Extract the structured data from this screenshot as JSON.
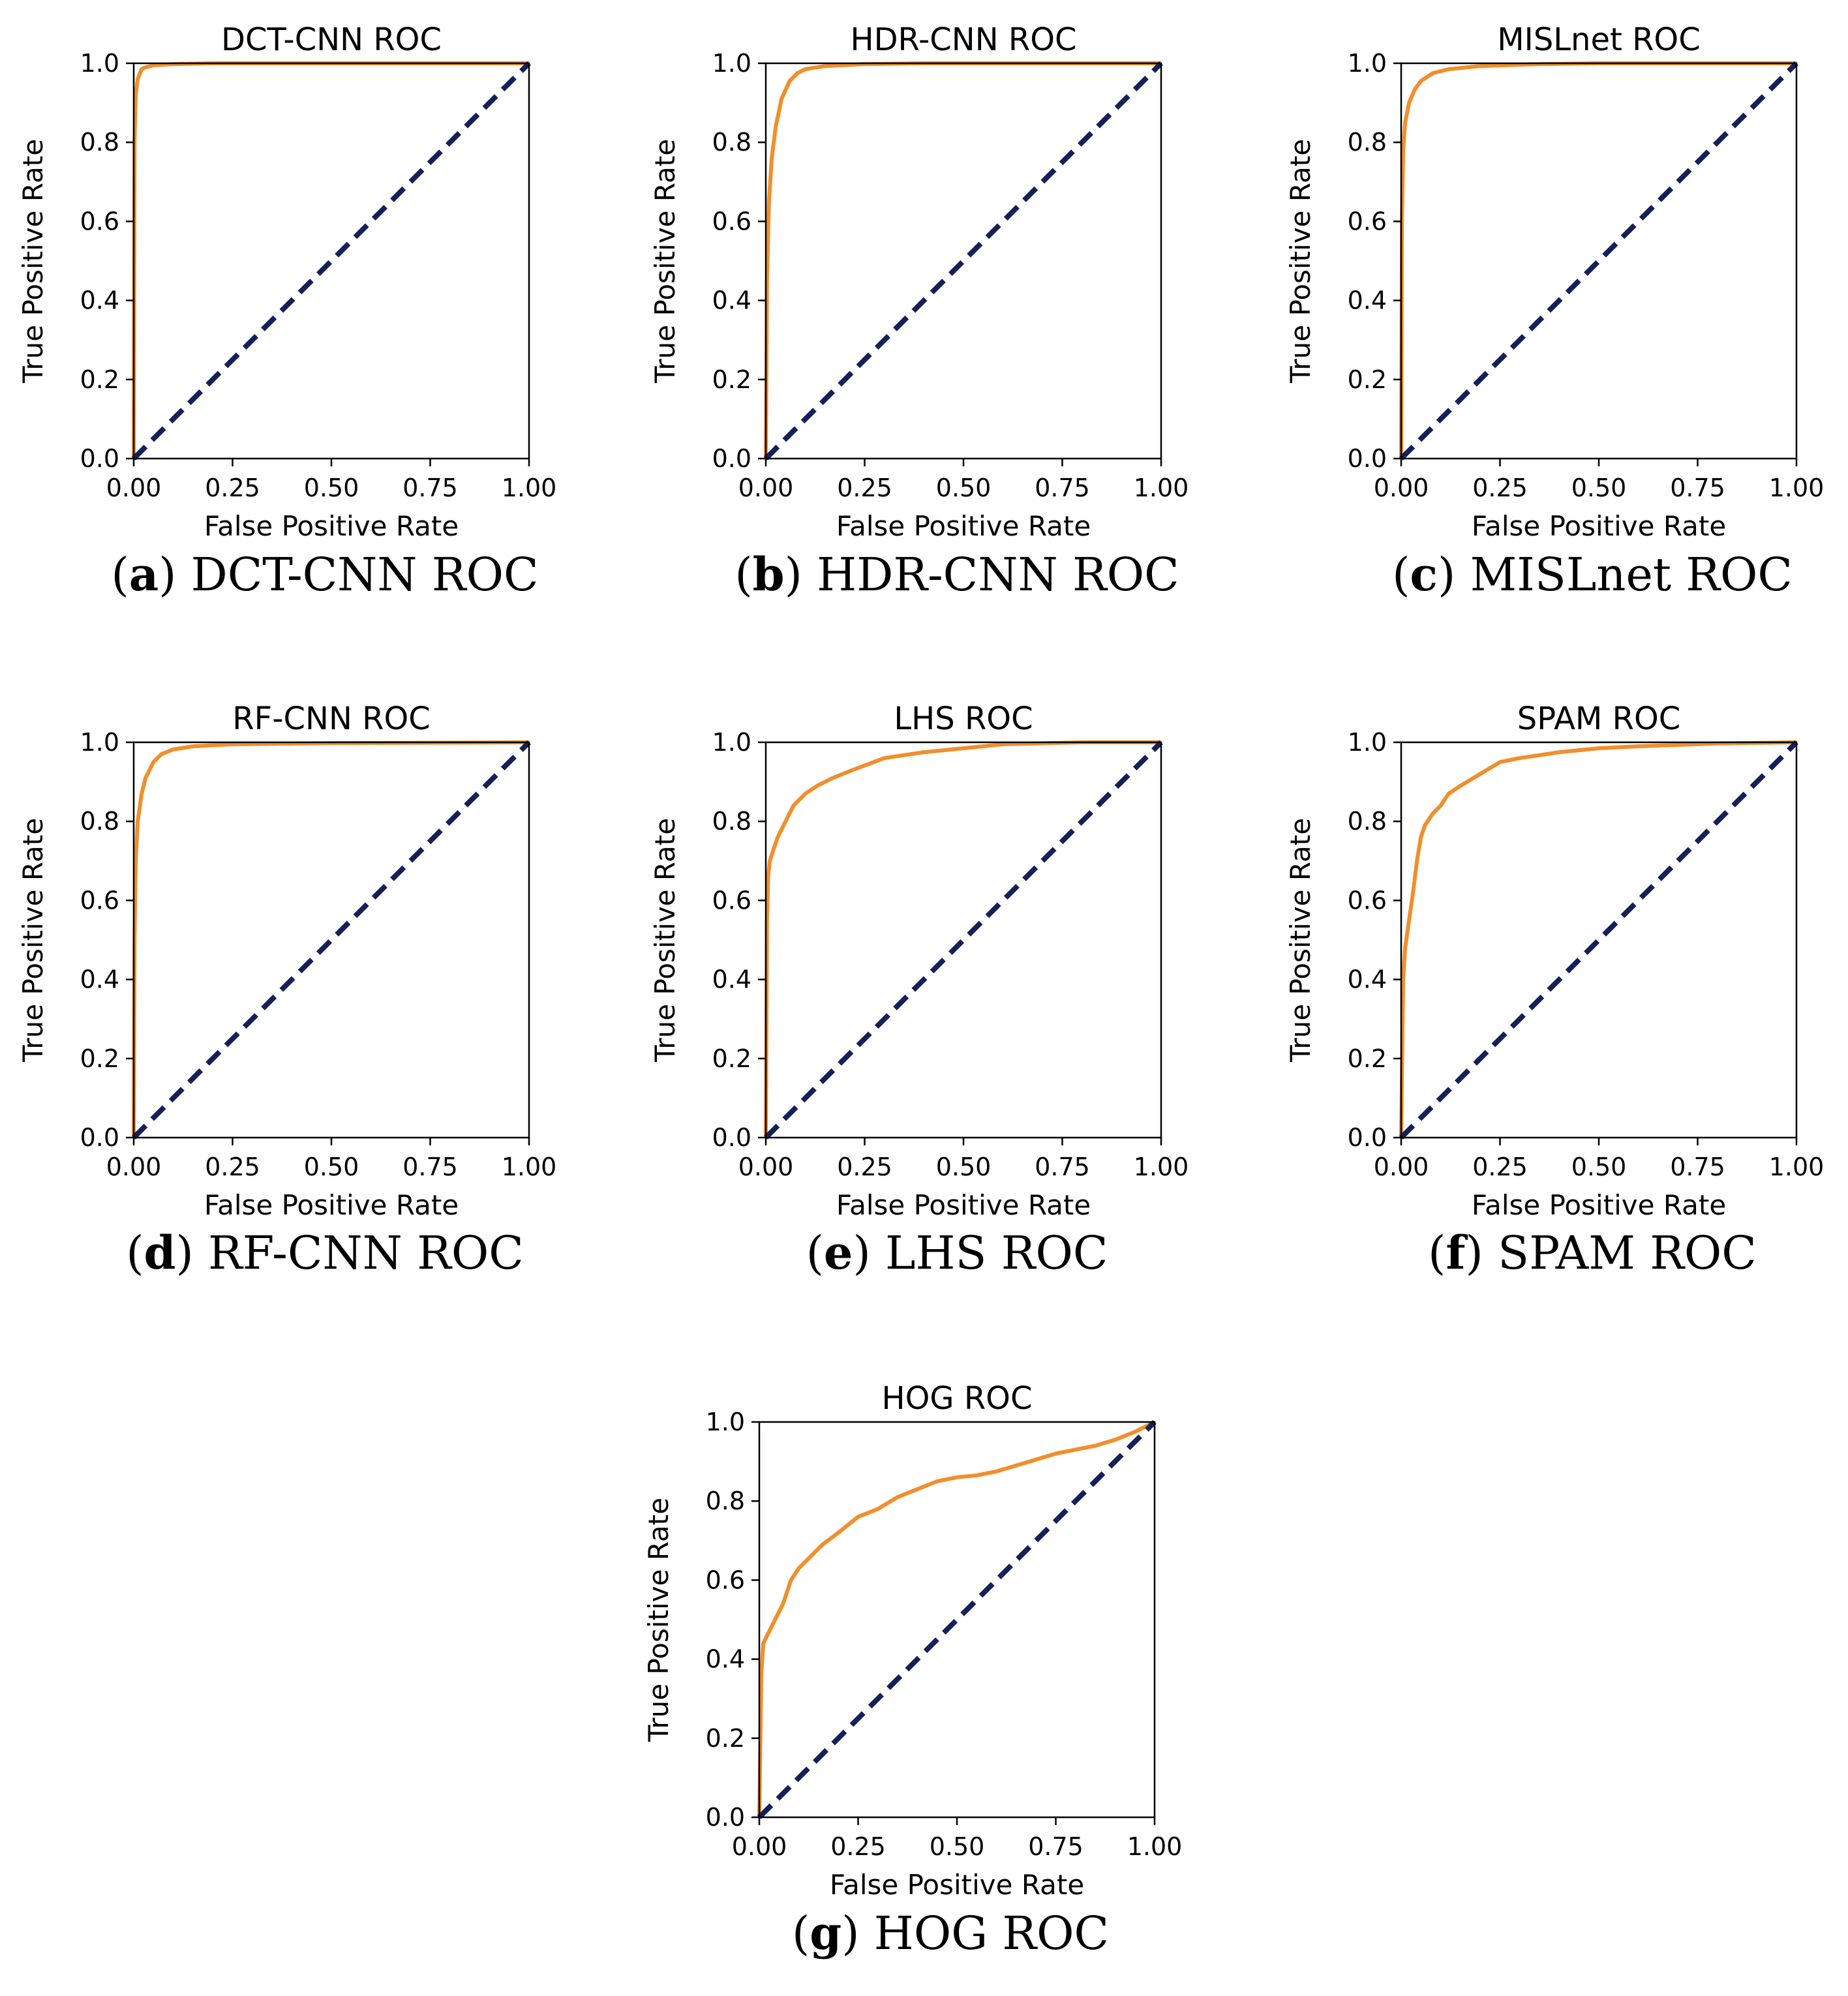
{
  "chart_data": [
    {
      "type": "line",
      "title": "DCT-CNN ROC",
      "caption_letter": "a",
      "caption_text": "DCT-CNN ROC",
      "xlabel": "False Positive Rate",
      "ylabel": "True Positive Rate",
      "xlim": [
        0,
        1
      ],
      "ylim": [
        0,
        1
      ],
      "xticks": [
        "0.00",
        "0.25",
        "0.50",
        "0.75",
        "1.00"
      ],
      "yticks": [
        "0.0",
        "0.2",
        "0.4",
        "0.6",
        "0.8",
        "1.0"
      ],
      "grid": false,
      "series": [
        {
          "color": "#f28e2b",
          "x": [
            0,
            0.002,
            0.005,
            0.01,
            0.02,
            0.03,
            0.05,
            0.1,
            0.2,
            0.4,
            1.0
          ],
          "y": [
            0,
            0.8,
            0.92,
            0.96,
            0.985,
            0.99,
            0.995,
            0.998,
            1.0,
            1.0,
            1.0
          ]
        },
        {
          "color": "#14205a",
          "dashed": true,
          "x": [
            0,
            1
          ],
          "y": [
            0,
            1
          ]
        }
      ]
    },
    {
      "type": "line",
      "title": "HDR-CNN ROC",
      "caption_letter": "b",
      "caption_text": "HDR-CNN ROC",
      "xlabel": "False Positive Rate",
      "ylabel": "True Positive Rate",
      "xlim": [
        0,
        1
      ],
      "ylim": [
        0,
        1
      ],
      "xticks": [
        "0.00",
        "0.25",
        "0.50",
        "0.75",
        "1.00"
      ],
      "yticks": [
        "0.0",
        "0.2",
        "0.4",
        "0.6",
        "0.8",
        "1.0"
      ],
      "grid": false,
      "series": [
        {
          "color": "#f28e2b",
          "x": [
            0,
            0.003,
            0.008,
            0.015,
            0.025,
            0.04,
            0.06,
            0.08,
            0.1,
            0.15,
            0.25,
            0.4,
            1.0
          ],
          "y": [
            0,
            0.45,
            0.65,
            0.76,
            0.84,
            0.91,
            0.955,
            0.975,
            0.985,
            0.993,
            0.998,
            1.0,
            1.0
          ]
        },
        {
          "color": "#14205a",
          "dashed": true,
          "x": [
            0,
            1
          ],
          "y": [
            0,
            1
          ]
        }
      ]
    },
    {
      "type": "line",
      "title": "MISLnet ROC",
      "caption_letter": "c",
      "caption_text": "MISLnet ROC",
      "xlabel": "False Positive Rate",
      "ylabel": "True Positive Rate",
      "xlim": [
        0,
        1
      ],
      "ylim": [
        0,
        1
      ],
      "xticks": [
        "0.00",
        "0.25",
        "0.50",
        "0.75",
        "1.00"
      ],
      "yticks": [
        "0.0",
        "0.2",
        "0.4",
        "0.6",
        "0.8",
        "1.0"
      ],
      "grid": false,
      "series": [
        {
          "color": "#f28e2b",
          "x": [
            0,
            0.002,
            0.005,
            0.01,
            0.02,
            0.035,
            0.05,
            0.08,
            0.12,
            0.2,
            0.35,
            0.5,
            1.0
          ],
          "y": [
            0,
            0.6,
            0.78,
            0.85,
            0.9,
            0.935,
            0.955,
            0.975,
            0.985,
            0.993,
            0.998,
            1.0,
            1.0
          ]
        },
        {
          "color": "#14205a",
          "dashed": true,
          "x": [
            0,
            1
          ],
          "y": [
            0,
            1
          ]
        }
      ]
    },
    {
      "type": "line",
      "title": "RF-CNN ROC",
      "caption_letter": "d",
      "caption_text": "RF-CNN ROC",
      "xlabel": "False Positive Rate",
      "ylabel": "True Positive Rate",
      "xlim": [
        0,
        1
      ],
      "ylim": [
        0,
        1
      ],
      "xticks": [
        "0.00",
        "0.25",
        "0.50",
        "0.75",
        "1.00"
      ],
      "yticks": [
        "0.0",
        "0.2",
        "0.4",
        "0.6",
        "0.8",
        "1.0"
      ],
      "grid": false,
      "series": [
        {
          "color": "#f28e2b",
          "x": [
            0,
            0.002,
            0.005,
            0.01,
            0.02,
            0.03,
            0.05,
            0.07,
            0.1,
            0.15,
            0.25,
            0.5,
            1.0
          ],
          "y": [
            0,
            0.5,
            0.7,
            0.8,
            0.87,
            0.91,
            0.95,
            0.97,
            0.982,
            0.99,
            0.995,
            0.998,
            1.0
          ]
        },
        {
          "color": "#14205a",
          "dashed": true,
          "x": [
            0,
            1
          ],
          "y": [
            0,
            1
          ]
        }
      ]
    },
    {
      "type": "line",
      "title": "LHS ROC",
      "caption_letter": "e",
      "caption_text": "LHS ROC",
      "xlabel": "False Positive Rate",
      "ylabel": "True Positive Rate",
      "xlim": [
        0,
        1
      ],
      "ylim": [
        0,
        1
      ],
      "xticks": [
        "0.00",
        "0.25",
        "0.50",
        "0.75",
        "1.00"
      ],
      "yticks": [
        "0.0",
        "0.2",
        "0.4",
        "0.6",
        "0.8",
        "1.0"
      ],
      "grid": false,
      "series": [
        {
          "color": "#f28e2b",
          "x": [
            0,
            0.003,
            0.006,
            0.01,
            0.02,
            0.03,
            0.05,
            0.07,
            0.1,
            0.13,
            0.17,
            0.22,
            0.3,
            0.4,
            0.5,
            0.6,
            0.8,
            1.0
          ],
          "y": [
            0,
            0.55,
            0.66,
            0.7,
            0.73,
            0.76,
            0.8,
            0.84,
            0.87,
            0.89,
            0.91,
            0.93,
            0.96,
            0.975,
            0.985,
            0.995,
            1.0,
            1.0
          ]
        },
        {
          "color": "#14205a",
          "dashed": true,
          "x": [
            0,
            1
          ],
          "y": [
            0,
            1
          ]
        }
      ]
    },
    {
      "type": "line",
      "title": "SPAM ROC",
      "caption_letter": "f",
      "caption_text": "SPAM ROC",
      "xlabel": "False Positive Rate",
      "ylabel": "True Positive Rate",
      "xlim": [
        0,
        1
      ],
      "ylim": [
        0,
        1
      ],
      "xticks": [
        "0.00",
        "0.25",
        "0.50",
        "0.75",
        "1.00"
      ],
      "yticks": [
        "0.0",
        "0.2",
        "0.4",
        "0.6",
        "0.8",
        "1.0"
      ],
      "grid": false,
      "series": [
        {
          "color": "#f28e2b",
          "x": [
            0,
            0.005,
            0.01,
            0.02,
            0.03,
            0.04,
            0.05,
            0.06,
            0.08,
            0.1,
            0.12,
            0.15,
            0.2,
            0.25,
            0.3,
            0.4,
            0.5,
            0.6,
            0.8,
            1.0
          ],
          "y": [
            0,
            0.4,
            0.48,
            0.55,
            0.62,
            0.7,
            0.76,
            0.79,
            0.82,
            0.84,
            0.87,
            0.89,
            0.92,
            0.95,
            0.96,
            0.975,
            0.985,
            0.99,
            0.997,
            1.0
          ]
        },
        {
          "color": "#14205a",
          "dashed": true,
          "x": [
            0,
            1
          ],
          "y": [
            0,
            1
          ]
        }
      ]
    },
    {
      "type": "line",
      "title": "HOG ROC",
      "caption_letter": "g",
      "caption_text": "HOG ROC",
      "xlabel": "False Positive Rate",
      "ylabel": "True Positive Rate",
      "xlim": [
        0,
        1
      ],
      "ylim": [
        0,
        1
      ],
      "xticks": [
        "0.00",
        "0.25",
        "0.50",
        "0.75",
        "1.00"
      ],
      "yticks": [
        "0.0",
        "0.2",
        "0.4",
        "0.6",
        "0.8",
        "1.0"
      ],
      "grid": false,
      "series": [
        {
          "color": "#f28e2b",
          "x": [
            0,
            0.005,
            0.01,
            0.02,
            0.04,
            0.06,
            0.08,
            0.1,
            0.13,
            0.16,
            0.2,
            0.25,
            0.3,
            0.35,
            0.4,
            0.45,
            0.5,
            0.55,
            0.6,
            0.65,
            0.7,
            0.75,
            0.8,
            0.85,
            0.9,
            0.95,
            1.0
          ],
          "y": [
            0,
            0.36,
            0.44,
            0.46,
            0.5,
            0.54,
            0.6,
            0.63,
            0.66,
            0.69,
            0.72,
            0.76,
            0.78,
            0.81,
            0.83,
            0.85,
            0.86,
            0.865,
            0.875,
            0.89,
            0.905,
            0.92,
            0.93,
            0.94,
            0.955,
            0.975,
            1.0
          ]
        },
        {
          "color": "#14205a",
          "dashed": true,
          "x": [
            0,
            1
          ],
          "y": [
            0,
            1
          ]
        }
      ]
    }
  ]
}
